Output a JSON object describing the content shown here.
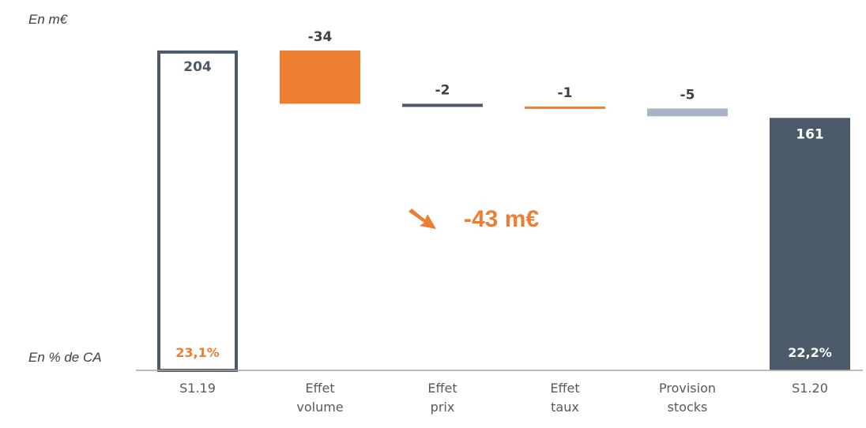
{
  "unit_label": "En m€",
  "pct_row_label": "En % de CA",
  "total_change": {
    "text": "-43 m€",
    "color": "#ED7D31",
    "icon": "arrow-down-right-icon"
  },
  "colors": {
    "dark": "#4A5A68",
    "orange": "#ED7D31",
    "light": "#A9B4C6",
    "axis": "#A6A6A6"
  },
  "chart_data": {
    "type": "waterfall",
    "title": "",
    "xlabel": "",
    "ylabel": "",
    "ylim": [
      0,
      210
    ],
    "grid": false,
    "legend": "none",
    "categories": [
      [
        "S1.19"
      ],
      [
        "Effet",
        "volume"
      ],
      [
        "Effet",
        "prix"
      ],
      [
        "Effet",
        "taux"
      ],
      [
        "Provision",
        "stocks"
      ],
      [
        "S1.20"
      ]
    ],
    "bars": [
      {
        "kind": "total",
        "value": 204,
        "label": "204",
        "pct": "23,1%",
        "style": "outline",
        "color": "#4A5A68",
        "label_color": "#4A5A68",
        "pct_color": "#ED7D31"
      },
      {
        "kind": "delta",
        "value": -34,
        "label": "-34",
        "color": "#ED7D31",
        "label_color": "#404040"
      },
      {
        "kind": "delta",
        "value": -2,
        "label": "-2",
        "color": "#4A5A68",
        "label_color": "#404040"
      },
      {
        "kind": "delta",
        "value": -1,
        "label": "-1",
        "color": "#ED7D31",
        "label_color": "#404040"
      },
      {
        "kind": "delta",
        "value": -5,
        "label": "-5",
        "color": "#A9B4C6",
        "label_color": "#404040"
      },
      {
        "kind": "total",
        "value": 161,
        "label": "161",
        "pct": "22,2%",
        "style": "filled",
        "color": "#4A5A68",
        "label_color": "#FFFFFF",
        "pct_color": "#FFFFFF"
      }
    ]
  }
}
